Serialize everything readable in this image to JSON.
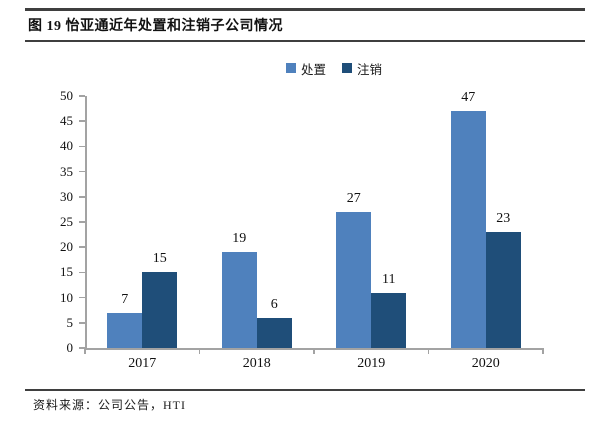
{
  "header": {
    "title": "图 19 怡亚通近年处置和注销子公司情况"
  },
  "footer": {
    "source": "资料来源：公司公告，HTI"
  },
  "chart_data": {
    "type": "bar",
    "title": "图 19 怡亚通近年处置和注销子公司情况",
    "categories": [
      "2017",
      "2018",
      "2019",
      "2020"
    ],
    "series": [
      {
        "name": "处置",
        "key": "disposal",
        "color": "#4F81BD",
        "values": [
          7,
          19,
          27,
          47
        ]
      },
      {
        "name": "注销",
        "key": "deregister",
        "color": "#1F4E79",
        "values": [
          15,
          6,
          11,
          23
        ]
      }
    ],
    "xlabel": "",
    "ylabel": "",
    "ylim": [
      0,
      50
    ],
    "yticks": [
      0,
      5,
      10,
      15,
      20,
      25,
      30,
      35,
      40,
      45,
      50
    ],
    "grid": false,
    "legend_position": "top",
    "bar_value_labels": true,
    "axis_color": "#a3a3a3",
    "text_color": "#111111"
  }
}
